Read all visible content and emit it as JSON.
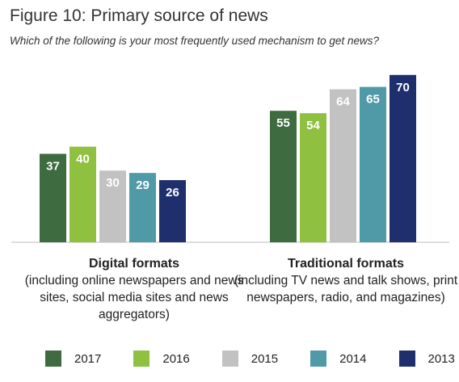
{
  "chart_data": {
    "type": "bar",
    "title": "Figure 10: Primary source of news",
    "subtitle": "Which of the following is your most frequently used mechanism to get news?",
    "categories": [
      {
        "title": "Digital formats",
        "description": "(including online newspapers and news sites, social media sites and news aggregators)"
      },
      {
        "title": "Traditional formats",
        "description": "(including TV news and talk shows, print newspapers, radio, and magazines)"
      }
    ],
    "series": [
      {
        "name": "2017",
        "color": "#3e6b3f",
        "values": [
          37,
          55
        ]
      },
      {
        "name": "2016",
        "color": "#8fc03f",
        "values": [
          40,
          54
        ]
      },
      {
        "name": "2015",
        "color": "#c2c2c2",
        "values": [
          30,
          64
        ]
      },
      {
        "name": "2014",
        "color": "#4f9aa6",
        "values": [
          29,
          65
        ]
      },
      {
        "name": "2013",
        "color": "#1f2f6e",
        "values": [
          26,
          70
        ]
      }
    ],
    "ylim": [
      0,
      70
    ],
    "legend_position": "bottom",
    "grid": false,
    "value_label_color": "#ffffff"
  }
}
